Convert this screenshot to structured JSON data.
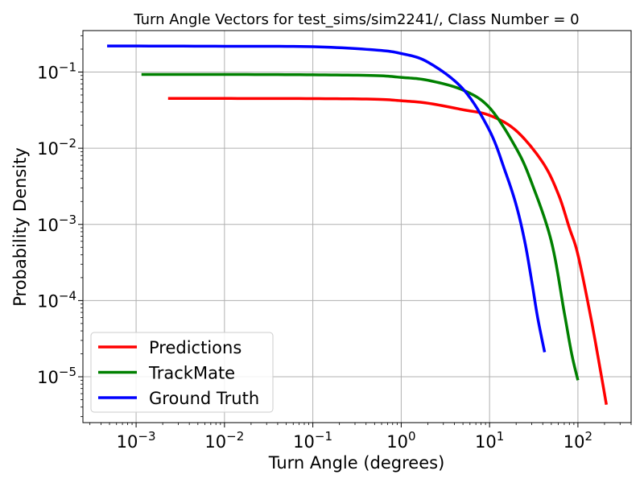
{
  "chart_data": {
    "type": "line",
    "title": "Turn Angle Vectors for test_sims/sim2241/, Class Number = 0",
    "xlabel": "Turn Angle (degrees)",
    "ylabel": "Probability Density",
    "xscale": "log",
    "yscale": "log",
    "xlim": [
      0.00025,
      400
    ],
    "ylim": [
      2.5e-06,
      0.35
    ],
    "grid": true,
    "legend_position": "lower left",
    "x_ticks": [
      {
        "base": "10",
        "exp": "−3",
        "value": 0.001
      },
      {
        "base": "10",
        "exp": "−2",
        "value": 0.01
      },
      {
        "base": "10",
        "exp": "−1",
        "value": 0.1
      },
      {
        "base": "10",
        "exp": "0",
        "value": 1
      },
      {
        "base": "10",
        "exp": "1",
        "value": 10
      },
      {
        "base": "10",
        "exp": "2",
        "value": 100
      }
    ],
    "y_ticks": [
      {
        "base": "10",
        "exp": "−5",
        "value": 1e-05
      },
      {
        "base": "10",
        "exp": "−4",
        "value": 0.0001
      },
      {
        "base": "10",
        "exp": "−3",
        "value": 0.001
      },
      {
        "base": "10",
        "exp": "−2",
        "value": 0.01
      },
      {
        "base": "10",
        "exp": "−1",
        "value": 0.1
      }
    ],
    "series": [
      {
        "name": "Predictions",
        "color": "#ff0000",
        "points": [
          [
            0.0023,
            0.045
          ],
          [
            0.01,
            0.045
          ],
          [
            0.1,
            0.0448
          ],
          [
            0.5,
            0.044
          ],
          [
            1,
            0.042
          ],
          [
            2,
            0.039
          ],
          [
            5,
            0.032
          ],
          [
            10,
            0.027
          ],
          [
            20,
            0.017
          ],
          [
            40,
            0.0065
          ],
          [
            60,
            0.0025
          ],
          [
            80,
            0.0009
          ],
          [
            100,
            0.0004
          ],
          [
            140,
            6e-05
          ],
          [
            180,
            1.2e-05
          ],
          [
            210,
            4.3e-06
          ]
        ]
      },
      {
        "name": "TrackMate",
        "color": "#008000",
        "points": [
          [
            0.00115,
            0.093
          ],
          [
            0.01,
            0.093
          ],
          [
            0.1,
            0.092
          ],
          [
            0.5,
            0.09
          ],
          [
            1,
            0.085
          ],
          [
            2,
            0.078
          ],
          [
            5,
            0.058
          ],
          [
            10,
            0.034
          ],
          [
            20,
            0.01
          ],
          [
            30,
            0.0035
          ],
          [
            50,
            0.0006
          ],
          [
            70,
            7e-05
          ],
          [
            85,
            2e-05
          ],
          [
            100,
            9e-06
          ]
        ]
      },
      {
        "name": "Ground Truth",
        "color": "#0000ff",
        "points": [
          [
            0.00047,
            0.22
          ],
          [
            0.01,
            0.218
          ],
          [
            0.1,
            0.215
          ],
          [
            0.5,
            0.195
          ],
          [
            1,
            0.175
          ],
          [
            2,
            0.135
          ],
          [
            5,
            0.06
          ],
          [
            10,
            0.017
          ],
          [
            15,
            0.005
          ],
          [
            20,
            0.0018
          ],
          [
            25,
            0.0006
          ],
          [
            30,
            0.00018
          ],
          [
            35,
            6e-05
          ],
          [
            42,
            2.1e-05
          ]
        ]
      }
    ]
  }
}
